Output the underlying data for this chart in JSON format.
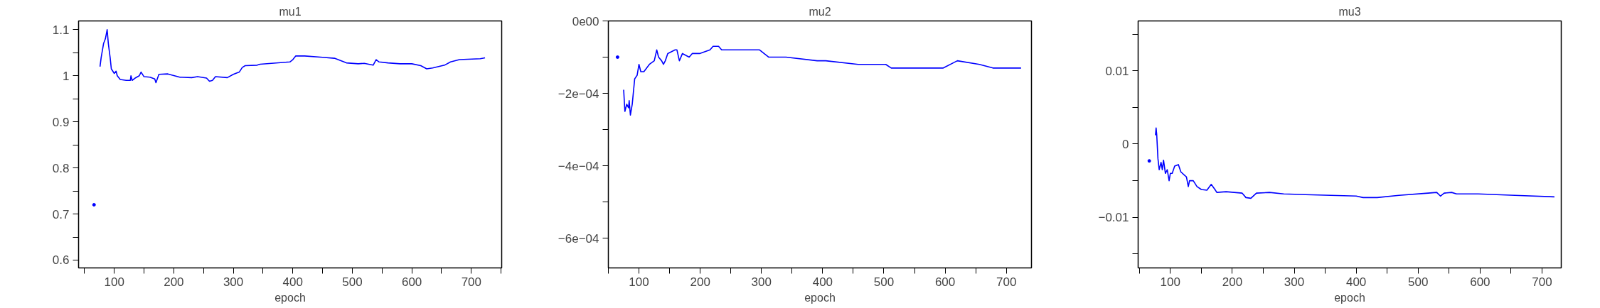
{
  "chart_data": [
    {
      "type": "line",
      "title": "mu1",
      "xlabel": "epoch",
      "color": "#0000ff",
      "xlim": [
        40,
        751
      ],
      "ylim": [
        0.583,
        1.119
      ],
      "xticks": [
        {
          "value": 50,
          "label": null
        },
        100,
        {
          "value": 150,
          "label": null
        },
        200,
        {
          "value": 250,
          "label": null
        },
        300,
        {
          "value": 350,
          "label": null
        },
        400,
        {
          "value": 450,
          "label": null
        },
        500,
        {
          "value": 550,
          "label": null
        },
        600,
        {
          "value": 650,
          "label": null
        },
        700,
        {
          "value": 750,
          "label": null
        }
      ],
      "yticks": [
        0.6,
        {
          "value": 0.65,
          "label": null
        },
        0.7,
        {
          "value": 0.75,
          "label": null
        },
        0.8,
        {
          "value": 0.85,
          "label": null
        },
        0.9,
        {
          "value": 0.95,
          "label": null
        },
        1,
        {
          "value": 1.05,
          "label": null
        },
        1.1
      ],
      "x": [
        66,
        70,
        76,
        78,
        82,
        85,
        88,
        90,
        93,
        95,
        100,
        103,
        105,
        110,
        120,
        127,
        128,
        130,
        135,
        142,
        145,
        150,
        160,
        168,
        170,
        175,
        190,
        210,
        230,
        240,
        255,
        260,
        265,
        270,
        290,
        300,
        310,
        315,
        320,
        340,
        345,
        395,
        400,
        405,
        420,
        450,
        470,
        480,
        490,
        510,
        520,
        535,
        540,
        545,
        560,
        580,
        600,
        615,
        625,
        635,
        645,
        655,
        665,
        680,
        715,
        723
      ],
      "values": [
        0.72,
        null,
        1.02,
        1.04,
        1.07,
        1.08,
        1.1,
        1.07,
        1.04,
        1.015,
        1.005,
        1.01,
        1.0,
        0.992,
        0.99,
        0.99,
        1.0,
        0.99,
        0.995,
        1.0,
        1.008,
        0.998,
        0.997,
        0.993,
        0.985,
        1.003,
        1.004,
        0.997,
        0.996,
        0.998,
        0.995,
        0.988,
        0.99,
        0.998,
        0.996,
        1.003,
        1.008,
        1.018,
        1.022,
        1.023,
        1.025,
        1.03,
        1.035,
        1.043,
        1.043,
        1.04,
        1.038,
        1.033,
        1.028,
        1.026,
        1.027,
        1.023,
        1.035,
        1.03,
        1.028,
        1.026,
        1.026,
        1.022,
        1.015,
        1.017,
        1.02,
        1.023,
        1.03,
        1.035,
        1.037,
        1.039
      ]
    },
    {
      "type": "line",
      "title": "mu2",
      "xlabel": "epoch",
      "color": "#0000ff",
      "xlim": [
        50,
        741
      ],
      "ylim": [
        -0.000682,
        0
      ],
      "xticks": [
        {
          "value": 50,
          "label": null
        },
        100,
        {
          "value": 150,
          "label": null
        },
        200,
        {
          "value": 250,
          "label": null
        },
        300,
        {
          "value": 350,
          "label": null
        },
        400,
        {
          "value": 450,
          "label": null
        },
        500,
        {
          "value": 550,
          "label": null
        },
        600,
        {
          "value": 650,
          "label": null
        },
        700
      ],
      "yticks": [
        {
          "value": -0.0006,
          "label": "−6e−04"
        },
        {
          "value": -0.0005,
          "label": null
        },
        {
          "value": -0.0004,
          "label": "−4e−04"
        },
        {
          "value": -0.0003,
          "label": null
        },
        {
          "value": -0.0002,
          "label": "−2e−04"
        },
        {
          "value": -0.0001,
          "label": null
        },
        {
          "value": 0,
          "label": "0e00"
        }
      ],
      "x": [
        65,
        70,
        75,
        77,
        80,
        83,
        84,
        86,
        89,
        93,
        97,
        100,
        103,
        108,
        117,
        125,
        129,
        132,
        137,
        140,
        143,
        147,
        159,
        162,
        166,
        171,
        182,
        187,
        199,
        216,
        221,
        230,
        235,
        244,
        255,
        278,
        297,
        312,
        340,
        391,
        405,
        458,
        503,
        512,
        529,
        546,
        560,
        597,
        620,
        656,
        678,
        712,
        724
      ],
      "values": [
        -0.0001,
        null,
        -0.00019,
        -0.00025,
        -0.00023,
        -0.00024,
        -0.00022,
        -0.00026,
        -0.00023,
        -0.00016,
        -0.00015,
        -0.00012,
        -0.00014,
        -0.00014,
        -0.00012,
        -0.00011,
        -8e-05,
        -0.0001,
        -0.00011,
        -0.00012,
        -0.00011,
        -9e-05,
        -8e-05,
        -8e-05,
        -0.00011,
        -9e-05,
        -0.0001,
        -9e-05,
        -9e-05,
        -8e-05,
        -7e-05,
        -7e-05,
        -8e-05,
        -8e-05,
        -8e-05,
        -8e-05,
        -8e-05,
        -0.0001,
        -0.0001,
        -0.00011,
        -0.00011,
        -0.00012,
        -0.00012,
        -0.00013,
        -0.00013,
        -0.00013,
        -0.00013,
        -0.00013,
        -0.00011,
        -0.00012,
        -0.00013,
        -0.00013,
        -0.00013
      ]
    },
    {
      "type": "line",
      "title": "mu3",
      "xlabel": "epoch",
      "color": "#0000ff",
      "xlim": [
        48,
        731
      ],
      "ylim": [
        -0.0169,
        0.0168
      ],
      "xticks": [
        {
          "value": 50,
          "label": null
        },
        100,
        {
          "value": 150,
          "label": null
        },
        200,
        {
          "value": 250,
          "label": null
        },
        300,
        {
          "value": 350,
          "label": null
        },
        400,
        {
          "value": 450,
          "label": null
        },
        500,
        {
          "value": 550,
          "label": null
        },
        600,
        {
          "value": 650,
          "label": null
        },
        700
      ],
      "yticks": [
        {
          "value": -0.015,
          "label": null
        },
        {
          "value": -0.01,
          "label": "−0.01"
        },
        {
          "value": -0.005,
          "label": null
        },
        0,
        {
          "value": 0.005,
          "label": null
        },
        0.01,
        {
          "value": 0.015,
          "label": null
        }
      ],
      "x": [
        66,
        70,
        76,
        77,
        78,
        80,
        82,
        85,
        87,
        89,
        92,
        95,
        98,
        100,
        103,
        107,
        113,
        117,
        126,
        129,
        131,
        137,
        143,
        150,
        159,
        166,
        172,
        175,
        190,
        216,
        222,
        230,
        239,
        260,
        283,
        318,
        400,
        411,
        434,
        469,
        516,
        530,
        536,
        542,
        554,
        562,
        597,
        656,
        720
      ],
      "values": [
        -0.0023,
        null,
        0.0012,
        0.0022,
        0.0013,
        -0.002,
        -0.0035,
        -0.0025,
        -0.0035,
        -0.0022,
        -0.004,
        -0.0035,
        -0.005,
        -0.004,
        -0.004,
        -0.003,
        -0.0028,
        -0.0038,
        -0.0045,
        -0.0058,
        -0.005,
        -0.005,
        -0.0058,
        -0.0062,
        -0.0063,
        -0.0055,
        -0.0062,
        -0.0066,
        -0.0065,
        -0.0067,
        -0.0073,
        -0.0074,
        -0.0067,
        -0.0066,
        -0.0068,
        -0.0069,
        -0.0071,
        -0.0073,
        -0.0073,
        -0.007,
        -0.0067,
        -0.0066,
        -0.0071,
        -0.0067,
        -0.0066,
        -0.0068,
        -0.0068,
        -0.007,
        -0.0072
      ]
    }
  ]
}
